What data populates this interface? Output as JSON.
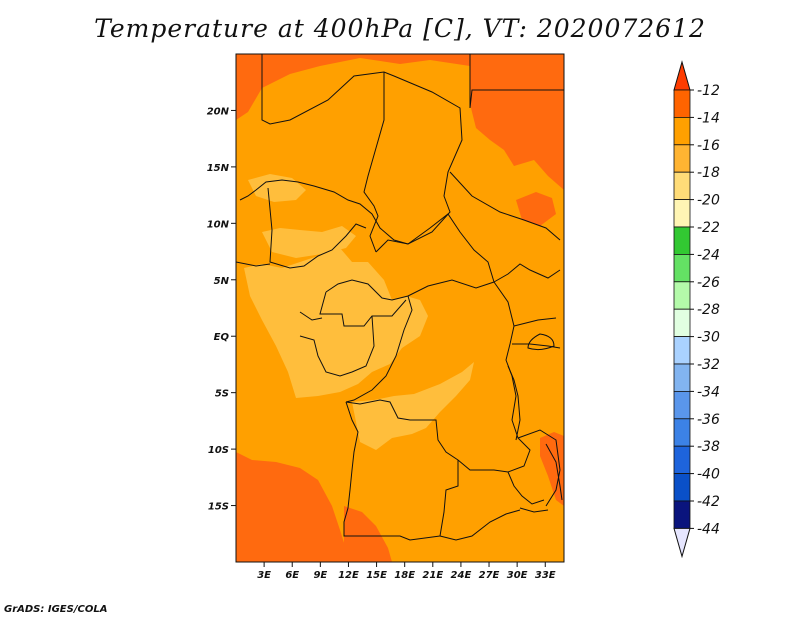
{
  "title": "Temperature at 400hPa [C], VT: 2020072612",
  "credit": "GrADS: IGES/COLA",
  "colors": {
    "t_-12_-13": "#ff6a0f",
    "t_-14_-15": "#ffa000",
    "t_-16_-17": "#ffbe3c",
    "border": "#111111"
  },
  "map": {
    "lon_range": [
      0,
      35
    ],
    "lat_range": [
      -20,
      25
    ],
    "lon_ticks": [
      {
        "value": 3,
        "label": "3E"
      },
      {
        "value": 6,
        "label": "6E"
      },
      {
        "value": 9,
        "label": "9E"
      },
      {
        "value": 12,
        "label": "12E"
      },
      {
        "value": 15,
        "label": "15E"
      },
      {
        "value": 18,
        "label": "18E"
      },
      {
        "value": 21,
        "label": "21E"
      },
      {
        "value": 24,
        "label": "24E"
      },
      {
        "value": 27,
        "label": "27E"
      },
      {
        "value": 30,
        "label": "30E"
      },
      {
        "value": 33,
        "label": "33E"
      }
    ],
    "lat_ticks": [
      {
        "value": 20,
        "label": "20N"
      },
      {
        "value": 15,
        "label": "15N"
      },
      {
        "value": 10,
        "label": "10N"
      },
      {
        "value": 5,
        "label": "5N"
      },
      {
        "value": 0,
        "label": "EQ"
      },
      {
        "value": -5,
        "label": "5S"
      },
      {
        "value": -10,
        "label": "10S"
      },
      {
        "value": -15,
        "label": "15S"
      }
    ]
  },
  "colorbar": {
    "over_color": "#ff3c00",
    "under_color": "#e6e6ff",
    "bins": [
      {
        "color": "#ff6400"
      },
      {
        "color": "#ffa000"
      },
      {
        "color": "#ffb432"
      },
      {
        "color": "#ffdc78"
      },
      {
        "color": "#fff5b4"
      },
      {
        "color": "#32c832"
      },
      {
        "color": "#64e164"
      },
      {
        "color": "#b4faaa"
      },
      {
        "color": "#e1ffe1"
      },
      {
        "color": "#aad2ff"
      },
      {
        "color": "#82b4f0"
      },
      {
        "color": "#5a96eb"
      },
      {
        "color": "#3c82e6"
      },
      {
        "color": "#1e64dc"
      },
      {
        "color": "#0a50c8"
      },
      {
        "color": "#0a147d"
      }
    ],
    "labels": [
      "-12",
      "-14",
      "-16",
      "-18",
      "-20",
      "-22",
      "-24",
      "-26",
      "-28",
      "-30",
      "-32",
      "-34",
      "-36",
      "-38",
      "-40",
      "-42",
      "-44"
    ]
  }
}
